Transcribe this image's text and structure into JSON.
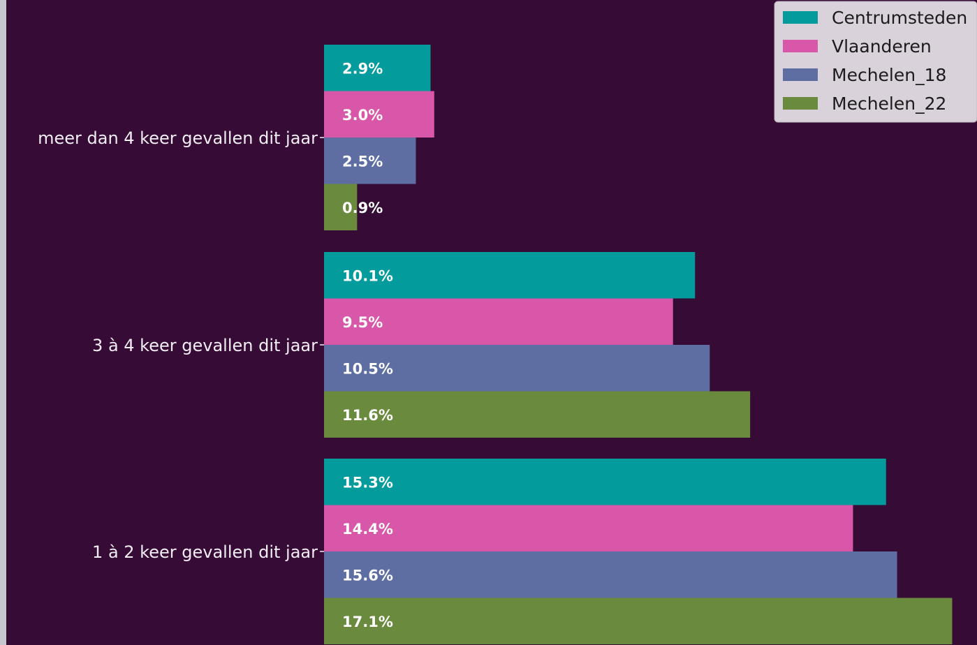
{
  "chart_data": {
    "type": "bar",
    "orientation": "horizontal",
    "title": "",
    "xlabel": "",
    "ylabel": "",
    "categories": [
      "meer dan 4 keer gevallen dit jaar",
      "3 à 4 keer gevallen dit jaar",
      "1 à 2 keer gevallen dit jaar"
    ],
    "series": [
      {
        "name": "Centrumsteden",
        "color": "#039b9b",
        "values": [
          2.9,
          10.1,
          15.3
        ],
        "labels": [
          "2.9%",
          "10.1%",
          "15.3%"
        ]
      },
      {
        "name": "Vlaanderen",
        "color": "#d957a9",
        "values": [
          3.0,
          9.5,
          14.4
        ],
        "labels": [
          "3.0%",
          "9.5%",
          "14.4%"
        ]
      },
      {
        "name": "Mechelen_18",
        "color": "#5e6ea3",
        "values": [
          2.5,
          10.5,
          15.6
        ],
        "labels": [
          "2.5%",
          "10.5%",
          "15.6%"
        ]
      },
      {
        "name": "Mechelen_22",
        "color": "#6a8a3e",
        "values": [
          0.9,
          11.6,
          17.1
        ],
        "labels": [
          "0.9%",
          "11.6%",
          "17.1%"
        ]
      }
    ],
    "value_format": "percent",
    "grid": false,
    "legend_position": "top-right",
    "background_color": "#360b36",
    "legend_background_color": "#d9d2da"
  }
}
